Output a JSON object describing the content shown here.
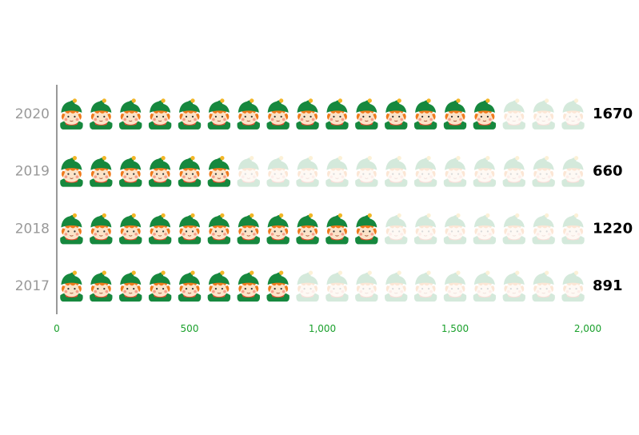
{
  "chart_data": {
    "type": "bar",
    "subtype": "pictorial",
    "orientation": "horizontal",
    "categories": [
      "2017",
      "2018",
      "2019",
      "2020"
    ],
    "values": [
      891,
      1220,
      660,
      1670
    ],
    "data_labels": [
      "891",
      "1220",
      "660",
      "1670"
    ],
    "xlim": [
      0,
      2000
    ],
    "x_ticks": [
      0,
      500,
      1000,
      1500,
      2000
    ],
    "x_tick_labels": [
      "0",
      "500",
      "1,000",
      "1,500",
      "2,000"
    ],
    "symbol": "elf-icon",
    "symbols_per_row": 18,
    "grid": false,
    "colors": {
      "hat": "#16883e",
      "body": "#16883e",
      "face": "#fbe3c8",
      "hair": "#f07a1c",
      "cheek": "#f58b7a",
      "pompom": "#f2b626",
      "scarf": "#e64b2f",
      "axis_line": "#333333",
      "tick_label": "#1aa02c",
      "category_label": "#999999",
      "value_label": "#000000"
    }
  }
}
